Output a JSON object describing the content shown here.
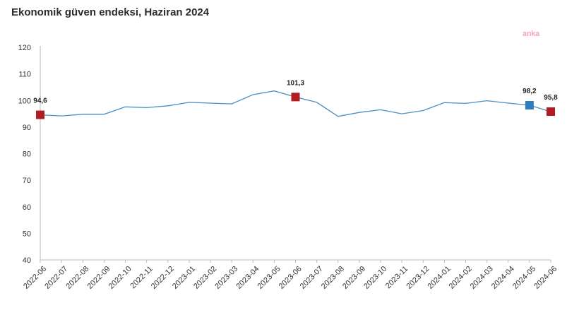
{
  "title": "Ekonomik güven endeksi, Haziran 2024",
  "watermark": "anka",
  "colors": {
    "line": "#4a8fc1",
    "highlight_red": "#b01c22",
    "highlight_blue": "#2e7cbd",
    "axis": "#b8b8b8"
  },
  "chart_data": {
    "type": "line",
    "title": "Ekonomik güven endeksi, Haziran 2024",
    "xlabel": "",
    "ylabel": "",
    "ylim": [
      40,
      120
    ],
    "yticks": [
      40,
      50,
      60,
      70,
      80,
      90,
      100,
      110,
      120
    ],
    "grid": false,
    "categories": [
      "2022-06",
      "2022-07",
      "2022-08",
      "2022-09",
      "2022-10",
      "2022-11",
      "2022-12",
      "2023-01",
      "2023-02",
      "2023-03",
      "2023-04",
      "2023-05",
      "2023-06",
      "2023-07",
      "2023-08",
      "2023-09",
      "2023-10",
      "2023-11",
      "2023-12",
      "2024-01",
      "2024-02",
      "2024-03",
      "2024-04",
      "2024-05",
      "2024-06"
    ],
    "series": [
      {
        "values": [
          94.6,
          94.2,
          94.8,
          94.8,
          97.6,
          97.3,
          98.0,
          99.3,
          99.0,
          98.7,
          102.2,
          103.6,
          101.3,
          99.3,
          94.0,
          95.5,
          96.5,
          95.0,
          96.2,
          99.2,
          98.9,
          99.9,
          99.0,
          98.2,
          95.8
        ]
      }
    ],
    "highlighted_points": [
      {
        "category": "2022-06",
        "value": 94.6,
        "label": "94,6",
        "color": "red"
      },
      {
        "category": "2023-06",
        "value": 101.3,
        "label": "101,3",
        "color": "red"
      },
      {
        "category": "2024-05",
        "value": 98.2,
        "label": "98,2",
        "color": "blue"
      },
      {
        "category": "2024-06",
        "value": 95.8,
        "label": "95,8",
        "color": "red"
      }
    ]
  }
}
